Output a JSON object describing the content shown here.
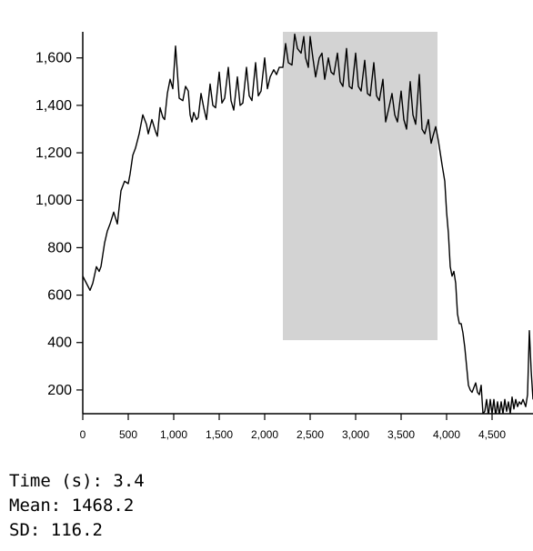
{
  "chart_data": {
    "type": "line",
    "title": "",
    "xlabel": "",
    "ylabel": "",
    "xlim": [
      0,
      4950
    ],
    "ylim": [
      100,
      1710
    ],
    "grid": false,
    "legend": "none",
    "xticks": [
      0,
      500,
      1000,
      1500,
      2000,
      2500,
      3000,
      3500,
      4000,
      4500
    ],
    "xtick_labels": [
      "0",
      "500",
      "1,000",
      "1,500",
      "2,000",
      "2,500",
      "3,000",
      "3,500",
      "4,000",
      "4,500"
    ],
    "yticks": [
      200,
      400,
      600,
      800,
      1000,
      1200,
      1400,
      1600
    ],
    "ytick_labels": [
      "200",
      "400",
      "600",
      "800",
      "1,000",
      "1,200",
      "1,400",
      "1,600"
    ],
    "highlight_region": {
      "x": [
        2200,
        3900
      ],
      "y": [
        410,
        1710
      ],
      "color": "#d3d3d3"
    },
    "line_color": "#000000",
    "series": [
      {
        "x": [
          0,
          40,
          80,
          110,
          150,
          180,
          200,
          240,
          270,
          300,
          340,
          380,
          420,
          460,
          500,
          520,
          550,
          580,
          620,
          660,
          700,
          720,
          760,
          800,
          820,
          850,
          880,
          900,
          930,
          960,
          990,
          1020,
          1060,
          1100,
          1130,
          1160,
          1180,
          1200,
          1220,
          1250,
          1270,
          1300,
          1330,
          1360,
          1400,
          1430,
          1460,
          1500,
          1530,
          1560,
          1600,
          1630,
          1660,
          1700,
          1730,
          1760,
          1800,
          1830,
          1860,
          1900,
          1930,
          1960,
          2000,
          2030,
          2060,
          2100,
          2130,
          2160,
          2200,
          2230,
          2260,
          2300,
          2330,
          2360,
          2400,
          2430,
          2450,
          2480,
          2500,
          2530,
          2560,
          2600,
          2630,
          2660,
          2700,
          2730,
          2760,
          2800,
          2830,
          2860,
          2900,
          2930,
          2960,
          3000,
          3030,
          3060,
          3100,
          3130,
          3160,
          3200,
          3230,
          3260,
          3300,
          3330,
          3360,
          3400,
          3430,
          3460,
          3500,
          3530,
          3560,
          3600,
          3630,
          3660,
          3700,
          3730,
          3760,
          3800,
          3830,
          3850,
          3880,
          3910,
          3950,
          3980,
          4000,
          4020,
          4040,
          4060,
          4080,
          4100,
          4120,
          4140,
          4160,
          4180,
          4200,
          4220,
          4240,
          4260,
          4280,
          4300,
          4320,
          4340,
          4360,
          4380,
          4400,
          4420,
          4440,
          4460,
          4480,
          4500,
          4520,
          4540,
          4560,
          4580,
          4600,
          4620,
          4640,
          4660,
          4680,
          4700,
          4720,
          4740,
          4760,
          4780,
          4800,
          4820,
          4840,
          4870,
          4890,
          4910,
          4930,
          4950
        ],
        "y": [
          680,
          650,
          620,
          650,
          720,
          700,
          720,
          820,
          870,
          900,
          950,
          900,
          1040,
          1080,
          1070,
          1110,
          1190,
          1220,
          1280,
          1360,
          1320,
          1280,
          1340,
          1290,
          1270,
          1390,
          1350,
          1340,
          1450,
          1510,
          1470,
          1650,
          1430,
          1420,
          1480,
          1460,
          1360,
          1330,
          1370,
          1340,
          1350,
          1450,
          1390,
          1340,
          1490,
          1400,
          1390,
          1540,
          1410,
          1430,
          1560,
          1420,
          1380,
          1520,
          1400,
          1410,
          1560,
          1440,
          1420,
          1580,
          1440,
          1460,
          1600,
          1470,
          1520,
          1550,
          1530,
          1560,
          1560,
          1660,
          1580,
          1570,
          1700,
          1640,
          1620,
          1690,
          1600,
          1560,
          1690,
          1600,
          1520,
          1600,
          1620,
          1510,
          1600,
          1540,
          1530,
          1620,
          1500,
          1480,
          1640,
          1480,
          1470,
          1620,
          1480,
          1460,
          1590,
          1450,
          1440,
          1580,
          1440,
          1420,
          1510,
          1330,
          1380,
          1450,
          1360,
          1330,
          1460,
          1340,
          1300,
          1500,
          1360,
          1320,
          1530,
          1300,
          1280,
          1340,
          1240,
          1270,
          1310,
          1250,
          1150,
          1080,
          950,
          860,
          720,
          680,
          700,
          650,
          520,
          480,
          480,
          440,
          380,
          300,
          220,
          200,
          190,
          210,
          230,
          190,
          180,
          220,
          100,
          110,
          160,
          90,
          160,
          100,
          160,
          90,
          150,
          95,
          150,
          100,
          160,
          110,
          150,
          100,
          170,
          120,
          160,
          130,
          150,
          140,
          160,
          130,
          180,
          450,
          280,
          160
        ]
      }
    ]
  },
  "stats": {
    "time_line": "Time (s): 3.4",
    "mean_line": "Mean: 1468.2",
    "sd_line": "SD: 116.2"
  }
}
